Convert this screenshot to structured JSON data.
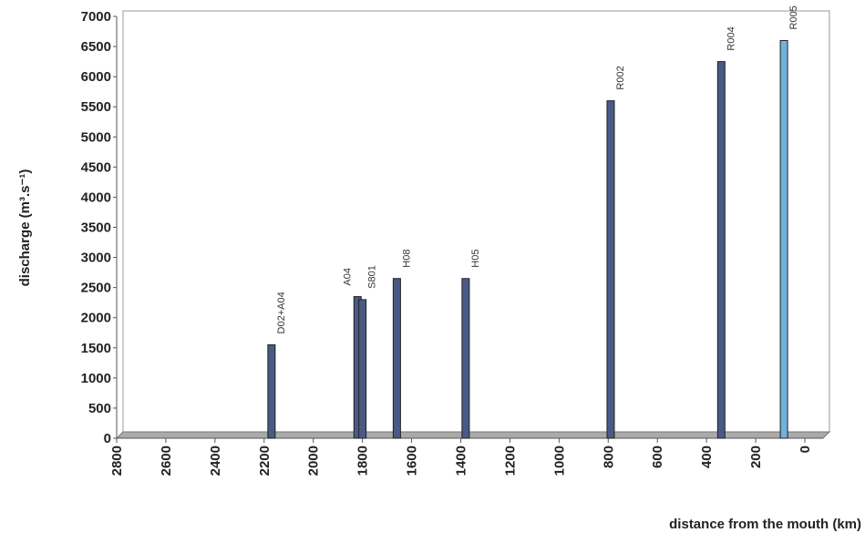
{
  "chart_data": {
    "type": "bar",
    "x_label": "distance from the mouth (km)",
    "y_label": "discharge (m³.s⁻¹)",
    "x": [
      2170,
      1820,
      1800,
      1660,
      1380,
      790,
      340,
      85
    ],
    "labels": [
      "D02+A04",
      "A04",
      "S801",
      "H08",
      "H05",
      "R002",
      "R004",
      "R005"
    ],
    "series": [
      {
        "values": [
          1550,
          2350,
          2300,
          2650,
          2650,
          5600,
          6250,
          6600
        ],
        "colors": [
          "#4a5a86",
          "#4a5a86",
          "#4a5a86",
          "#4a5a86",
          "#4a5a86",
          "#4a5a86",
          "#4a5a86",
          "#6fb3dd"
        ]
      }
    ],
    "xlim": [
      2800,
      0
    ],
    "xticks": [
      2800,
      2600,
      2400,
      2200,
      2000,
      1800,
      1600,
      1400,
      1200,
      1000,
      800,
      600,
      400,
      200,
      0
    ],
    "ylim": [
      0,
      7000
    ],
    "yticks": [
      0,
      500,
      1000,
      1500,
      2000,
      2500,
      3000,
      3500,
      4000,
      4500,
      5000,
      5500,
      6000,
      6500,
      7000
    ]
  }
}
